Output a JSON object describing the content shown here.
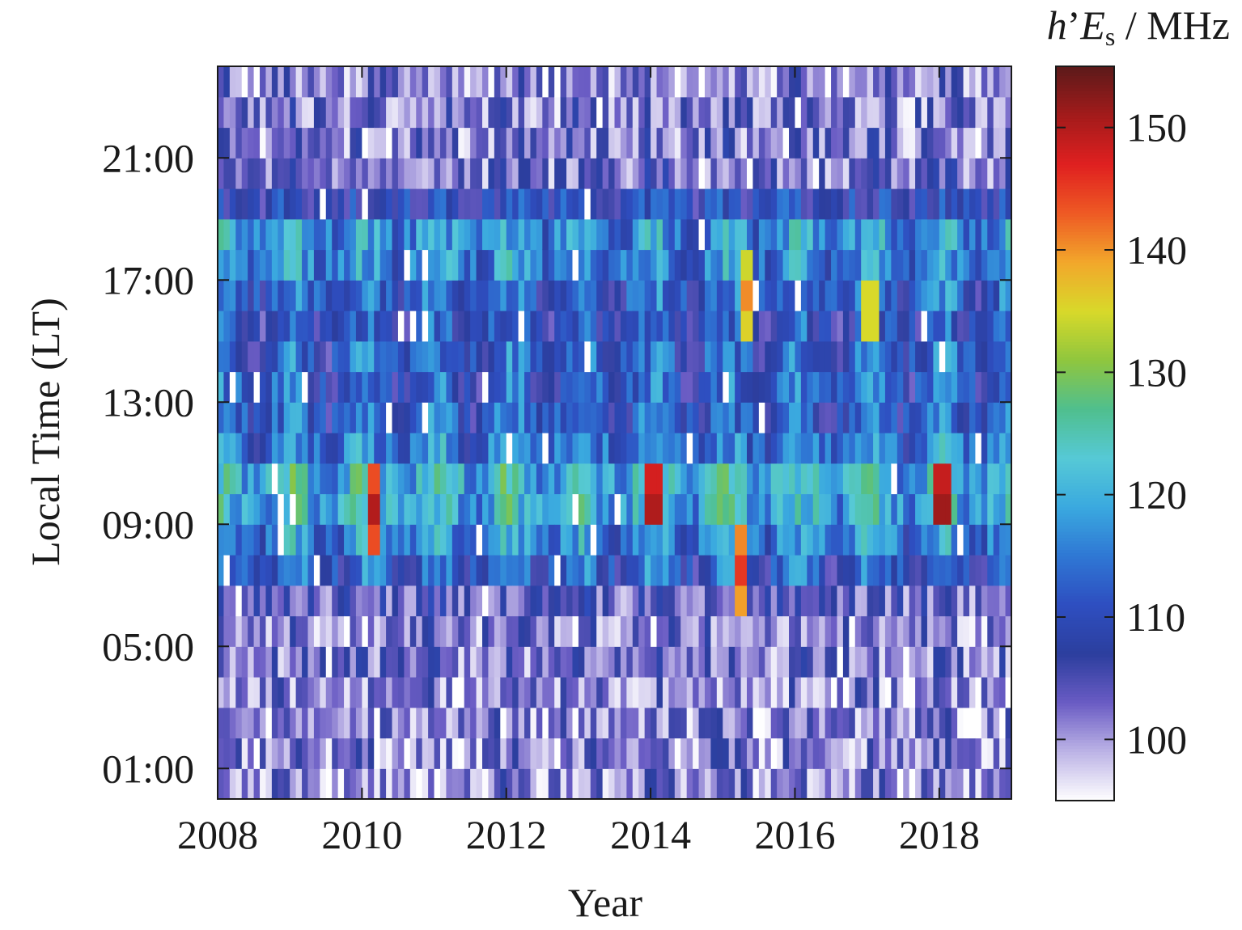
{
  "chart_data": {
    "type": "heatmap",
    "title": "",
    "xlabel": "Year",
    "ylabel": "Local Time (LT)",
    "xlim": [
      2008,
      2019
    ],
    "ylim": [
      0,
      24
    ],
    "x_ticks": [
      2008,
      2010,
      2012,
      2014,
      2016,
      2018
    ],
    "x_tick_labels": [
      "2008",
      "2010",
      "2012",
      "2014",
      "2016",
      "2018"
    ],
    "y_ticks": [
      1,
      5,
      9,
      13,
      17,
      21
    ],
    "y_tick_labels": [
      "01:00",
      "05:00",
      "09:00",
      "13:00",
      "17:00",
      "21:00"
    ],
    "hours": [
      0,
      1,
      2,
      3,
      4,
      5,
      6,
      7,
      8,
      9,
      10,
      11,
      12,
      13,
      14,
      15,
      16,
      17,
      18,
      19,
      20,
      21,
      22,
      23
    ],
    "time_resolution_months": 1,
    "colorbar": {
      "label_italic_h": "h",
      "label_prime": "’",
      "label_italic_E": "E",
      "label_sub": "s",
      "label_unit": " / MHz",
      "range": [
        95,
        155
      ],
      "ticks": [
        100,
        110,
        120,
        130,
        140,
        150
      ],
      "tick_labels": [
        "100",
        "110",
        "120",
        "130",
        "140",
        "150"
      ],
      "colors": [
        "#ffffff",
        "#bdb4e6",
        "#6a5cc4",
        "#2c3e9e",
        "#2e4ec0",
        "#2f77d4",
        "#3aa9df",
        "#56c9d6",
        "#4fbf8e",
        "#8fc63e",
        "#d8d92a",
        "#f2a72b",
        "#ee5a24",
        "#e02020",
        "#a31b1b",
        "#5c1a1a"
      ]
    },
    "hourly_profile": [
      101,
      101,
      101,
      101,
      102,
      102,
      104,
      112,
      116,
      120,
      121,
      115,
      112,
      112,
      112,
      110,
      113,
      116,
      117,
      109,
      103,
      102,
      102,
      101
    ],
    "notable_peaks": [
      {
        "year": 2010.1,
        "hour": 9.5,
        "value": 150
      },
      {
        "year": 2014.0,
        "hour": 9.8,
        "value": 152
      },
      {
        "year": 2015.2,
        "hour": 7.6,
        "value": 146
      },
      {
        "year": 2018.0,
        "hour": 9.8,
        "value": 153
      },
      {
        "year": 2015.3,
        "hour": 16.4,
        "value": 141
      },
      {
        "year": 2017.0,
        "hour": 16.0,
        "value": 138
      }
    ]
  }
}
